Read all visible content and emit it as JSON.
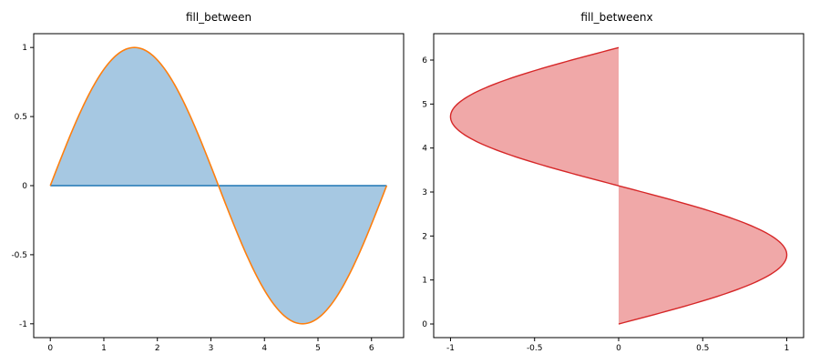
{
  "chart_data": [
    {
      "type": "area",
      "title": "fill_between",
      "xlabel": "",
      "ylabel": "",
      "xlim": [
        -0.31,
        6.6
      ],
      "ylim": [
        -1.1,
        1.1
      ],
      "xticks": [
        0,
        1,
        2,
        3,
        4,
        5,
        6
      ],
      "yticks": [
        1,
        0.5,
        0,
        -0.5,
        -1
      ],
      "xtick_labels": [
        "0",
        "1",
        "2",
        "3",
        "4",
        "5",
        "6"
      ],
      "ytick_labels": [
        "1",
        "0.5",
        "0",
        "-0.5",
        "-1"
      ],
      "function": "y = sin(x), x from 0 to 6.283",
      "x": [
        0,
        0.5,
        1.0,
        1.5708,
        2.0,
        2.5,
        3.1416,
        3.5,
        4.0,
        4.7124,
        5.0,
        5.5,
        6.2832
      ],
      "y": [
        0,
        0.479,
        0.841,
        1.0,
        0.909,
        0.598,
        0,
        -0.351,
        -0.757,
        -1.0,
        -0.959,
        -0.706,
        0
      ],
      "series": [
        {
          "kind": "fill",
          "between": [
            "y = 0",
            "y = sin(x)"
          ],
          "color": "#a6c8e2"
        },
        {
          "kind": "line",
          "of": "y = 0",
          "color": "#1f77b4"
        },
        {
          "kind": "line",
          "of": "y = sin(x)",
          "color": "#ff7f0e"
        }
      ],
      "grid": false
    },
    {
      "type": "area",
      "title": "fill_betweenx",
      "xlabel": "",
      "ylabel": "",
      "xlim": [
        -1.1,
        1.1
      ],
      "ylim": [
        -0.31,
        6.6
      ],
      "xticks": [
        -1,
        -0.5,
        0,
        0.5,
        1
      ],
      "yticks": [
        6,
        5,
        4,
        3,
        2,
        1,
        0
      ],
      "xtick_labels": [
        "-1",
        "-0.5",
        "0",
        "0.5",
        "1"
      ],
      "ytick_labels": [
        "6",
        "5",
        "4",
        "3",
        "2",
        "1",
        "0"
      ],
      "function": "x = sin(y), y from 0 to 6.283",
      "y": [
        0,
        0.5,
        1.0,
        1.5708,
        2.0,
        2.5,
        3.1416,
        3.5,
        4.0,
        4.7124,
        5.0,
        5.5,
        6.2832
      ],
      "x": [
        0,
        0.479,
        0.841,
        1.0,
        0.909,
        0.598,
        0,
        -0.351,
        -0.757,
        -1.0,
        -0.959,
        -0.706,
        0
      ],
      "series": [
        {
          "kind": "fill",
          "between": [
            "x = 0",
            "x = sin(y)"
          ],
          "color": "#f0a8a8"
        },
        {
          "kind": "line",
          "of": "x = sin(y)",
          "color": "#d62728"
        }
      ],
      "grid": false
    }
  ]
}
